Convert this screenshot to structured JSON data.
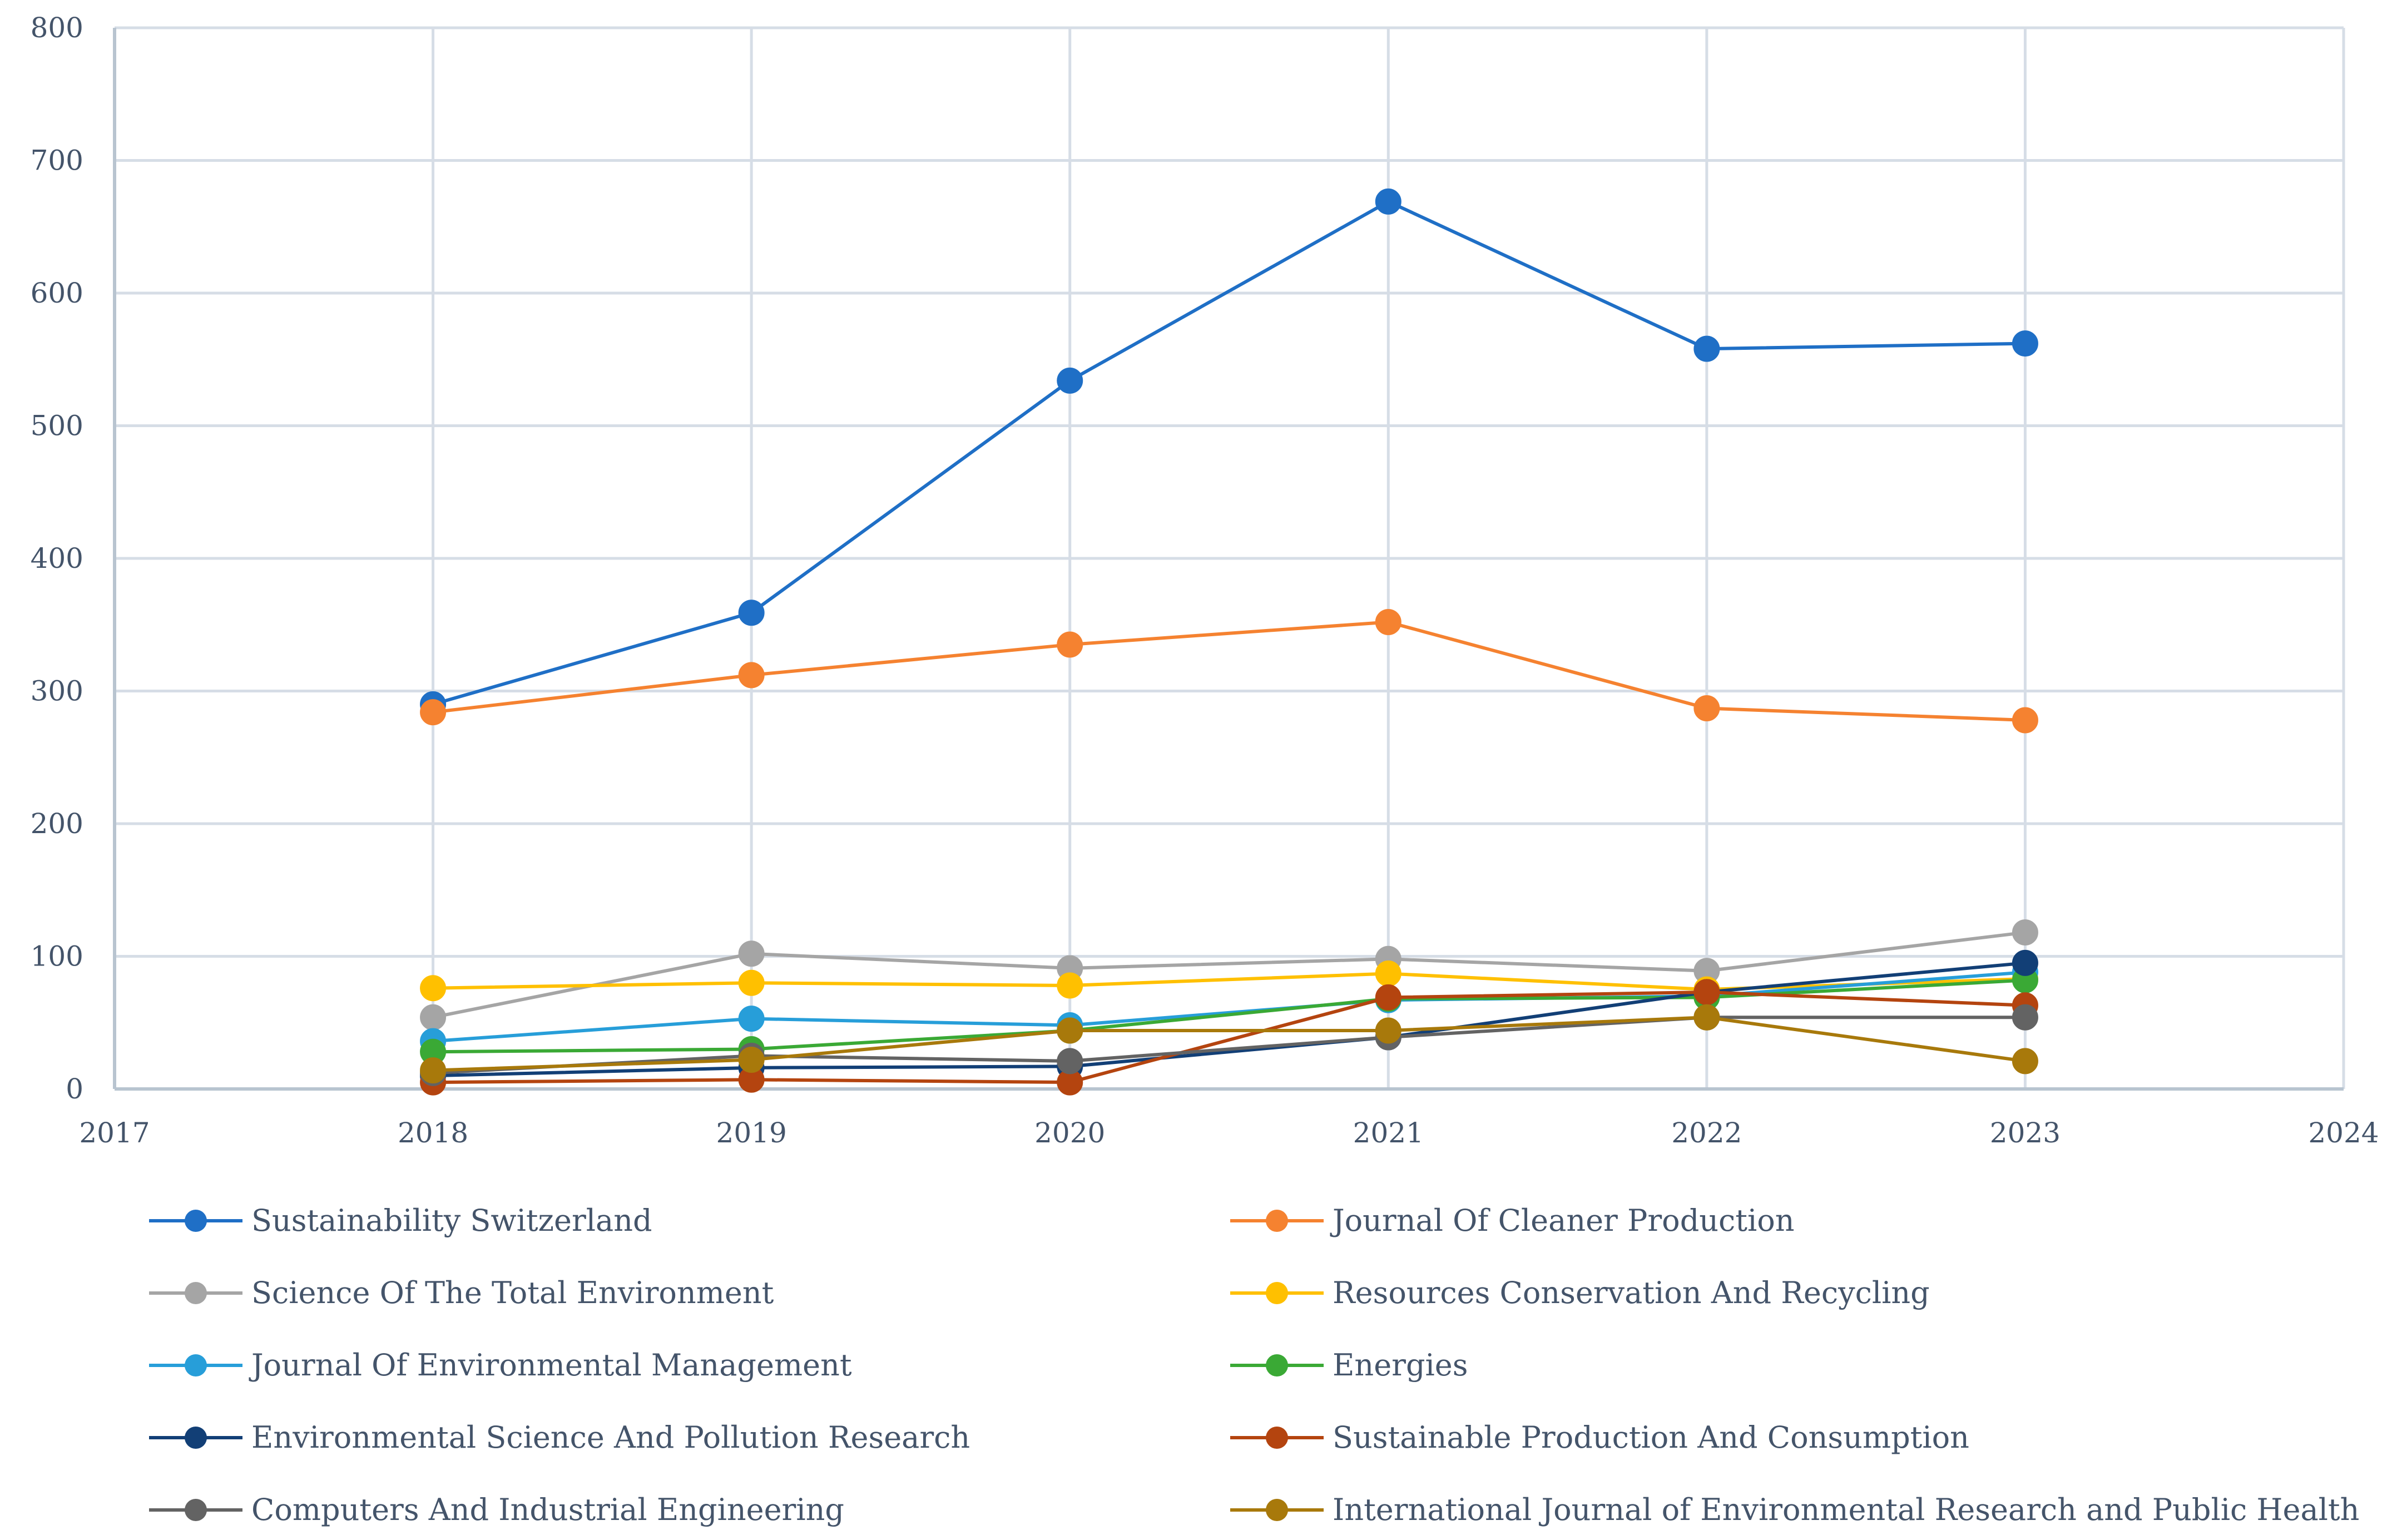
{
  "chart_data": {
    "type": "line",
    "title": "",
    "xlabel": "",
    "ylabel": "",
    "xlim": [
      2017,
      2024
    ],
    "ylim": [
      0,
      800
    ],
    "x_ticks": [
      2017,
      2018,
      2019,
      2020,
      2021,
      2022,
      2023,
      2024
    ],
    "y_ticks": [
      0,
      100,
      200,
      300,
      400,
      500,
      600,
      700,
      800
    ],
    "grid": true,
    "legend_position": "bottom",
    "x": [
      2018,
      2019,
      2020,
      2021,
      2022,
      2023
    ],
    "series": [
      {
        "name": "Sustainability Switzerland",
        "color": "#1f6fc6",
        "values": [
          290,
          359,
          534,
          669,
          558,
          562
        ]
      },
      {
        "name": "Journal Of Cleaner Production",
        "color": "#f58230",
        "values": [
          284,
          312,
          335,
          352,
          287,
          278
        ]
      },
      {
        "name": "Science Of The Total Environment",
        "color": "#a5a5a5",
        "values": [
          54,
          102,
          91,
          98,
          89,
          118
        ]
      },
      {
        "name": "Resources Conservation And Recycling",
        "color": "#ffc000",
        "values": [
          76,
          80,
          78,
          87,
          75,
          83
        ]
      },
      {
        "name": "Journal Of Environmental Management",
        "color": "#279ed9",
        "values": [
          36,
          53,
          48,
          67,
          70,
          88
        ]
      },
      {
        "name": "Energies",
        "color": "#3aa935",
        "values": [
          28,
          30,
          44,
          68,
          69,
          82
        ]
      },
      {
        "name": "Environmental Science And Pollution Research",
        "color": "#123f76",
        "values": [
          10,
          16,
          17,
          39,
          73,
          95
        ]
      },
      {
        "name": "Sustainable Production And Consumption",
        "color": "#b4440f",
        "values": [
          5,
          7,
          5,
          69,
          73,
          63
        ]
      },
      {
        "name": "Computers And Industrial Engineering",
        "color": "#636363",
        "values": [
          12,
          25,
          21,
          39,
          54,
          54
        ]
      },
      {
        "name": "International Journal of Environmental Research and Public Health",
        "color": "#a8790b",
        "values": [
          14,
          22,
          44,
          44,
          54,
          21
        ]
      }
    ]
  }
}
